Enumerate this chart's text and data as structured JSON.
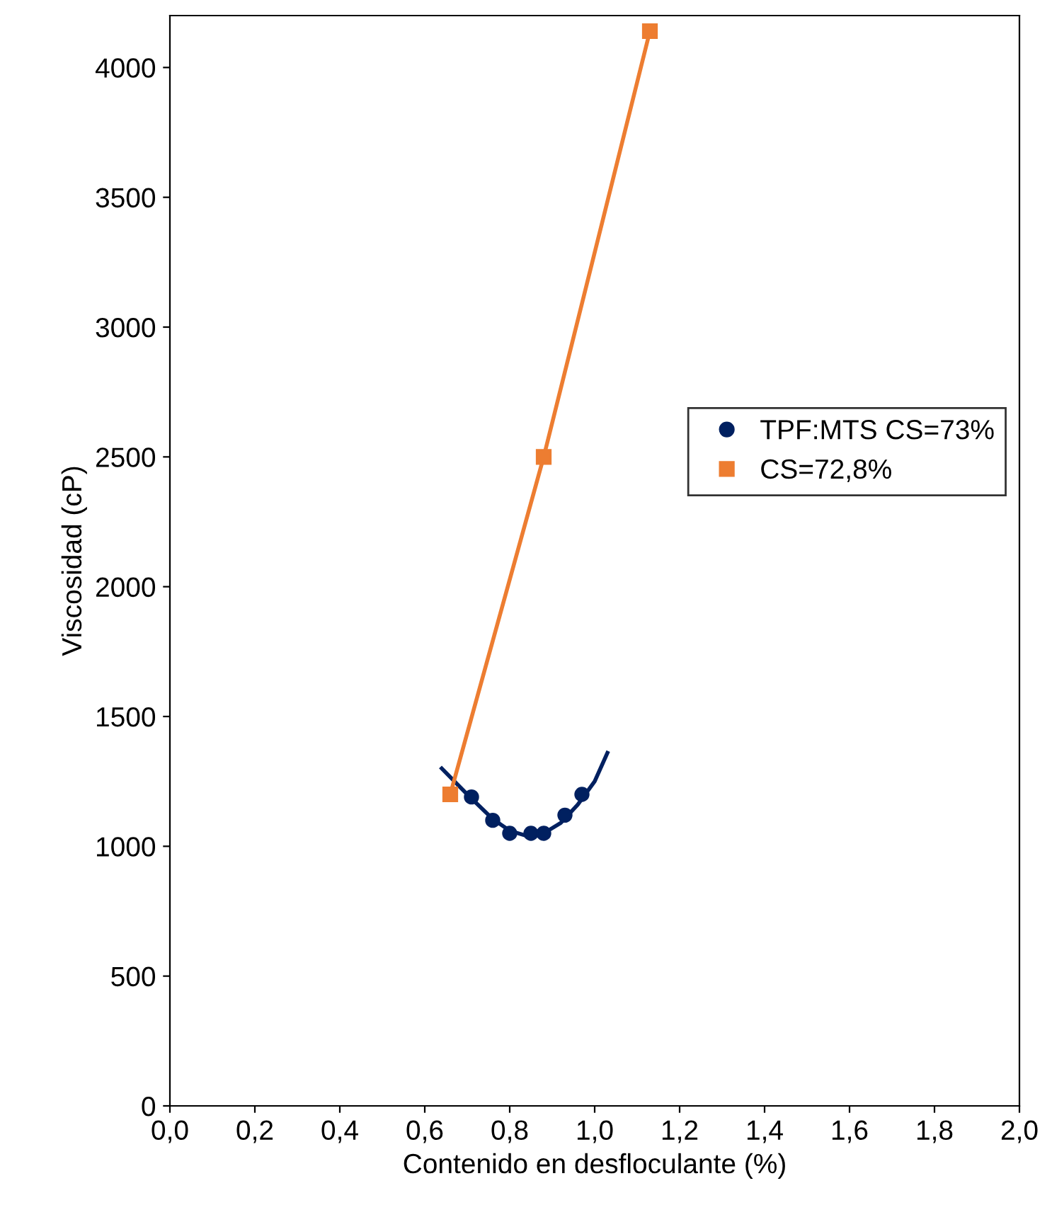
{
  "chart_data": {
    "type": "scatter",
    "xlabel": "Contenido en desfloculante (%)",
    "ylabel": "Viscosidad (cP)",
    "xlim": [
      0,
      2
    ],
    "ylim": [
      0,
      4200
    ],
    "xticks": [
      {
        "value": 0,
        "label": "0,0"
      },
      {
        "value": 0.2,
        "label": "0,2"
      },
      {
        "value": 0.4,
        "label": "0,4"
      },
      {
        "value": 0.6,
        "label": "0,6"
      },
      {
        "value": 0.8,
        "label": "0,8"
      },
      {
        "value": 1.0,
        "label": "1,0"
      },
      {
        "value": 1.2,
        "label": "1,2"
      },
      {
        "value": 1.4,
        "label": "1,4"
      },
      {
        "value": 1.6,
        "label": "1,6"
      },
      {
        "value": 1.8,
        "label": "1,8"
      },
      {
        "value": 2.0,
        "label": "2,0"
      }
    ],
    "yticks": [
      0,
      500,
      1000,
      1500,
      2000,
      2500,
      3000,
      3500,
      4000
    ],
    "grid": false,
    "legend": "right",
    "series": [
      {
        "name": "TPF:MTS CS=73%",
        "marker": "circle",
        "color": "#002060",
        "x": [
          0.71,
          0.76,
          0.8,
          0.85,
          0.88,
          0.93,
          0.97
        ],
        "values": [
          1190,
          1100,
          1050,
          1050,
          1050,
          1120,
          1200
        ]
      },
      {
        "type": "line",
        "marker": "none",
        "color": "#002060",
        "x": [
          0.64,
          0.7,
          0.76,
          0.8,
          0.84,
          0.88,
          0.92,
          0.96,
          1.0,
          1.03
        ],
        "values": [
          1300,
          1200,
          1105,
          1060,
          1040,
          1050,
          1090,
          1160,
          1250,
          1360
        ]
      },
      {
        "name": "CS=72,8%",
        "type": "line",
        "marker": "square",
        "color": "#ed7d31",
        "x": [
          0.66,
          0.88,
          1.13
        ],
        "values": [
          1200,
          2500,
          4140
        ]
      }
    ]
  }
}
